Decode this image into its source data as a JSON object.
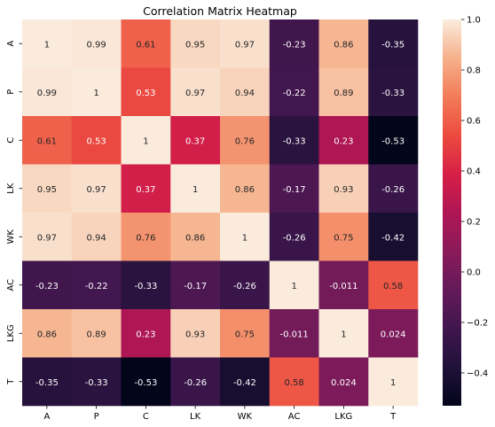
{
  "chart_data": {
    "type": "heatmap",
    "title": "Correlation Matrix Heatmap",
    "xlabel": "",
    "ylabel": "",
    "x_categories": [
      "A",
      "P",
      "C",
      "LK",
      "WK",
      "AC",
      "LKG",
      "T"
    ],
    "y_categories": [
      "A",
      "P",
      "C",
      "LK",
      "WK",
      "AC",
      "LKG",
      "T"
    ],
    "values": [
      [
        1,
        0.99,
        0.61,
        0.95,
        0.97,
        -0.23,
        0.86,
        -0.35
      ],
      [
        0.99,
        1,
        0.53,
        0.97,
        0.94,
        -0.22,
        0.89,
        -0.33
      ],
      [
        0.61,
        0.53,
        1,
        0.37,
        0.76,
        -0.33,
        0.23,
        -0.53
      ],
      [
        0.95,
        0.97,
        0.37,
        1,
        0.86,
        -0.17,
        0.93,
        -0.26
      ],
      [
        0.97,
        0.94,
        0.76,
        0.86,
        1,
        -0.26,
        0.75,
        -0.42
      ],
      [
        -0.23,
        -0.22,
        -0.33,
        -0.17,
        -0.26,
        1,
        -0.011,
        0.58
      ],
      [
        0.86,
        0.89,
        0.23,
        0.93,
        0.75,
        -0.011,
        1,
        0.024
      ],
      [
        -0.35,
        -0.33,
        -0.53,
        -0.26,
        -0.42,
        0.58,
        0.024,
        1
      ]
    ],
    "labels": [
      [
        "1",
        "0.99",
        "0.61",
        "0.95",
        "0.97",
        "-0.23",
        "0.86",
        "-0.35"
      ],
      [
        "0.99",
        "1",
        "0.53",
        "0.97",
        "0.94",
        "-0.22",
        "0.89",
        "-0.33"
      ],
      [
        "0.61",
        "0.53",
        "1",
        "0.37",
        "0.76",
        "-0.33",
        "0.23",
        "-0.53"
      ],
      [
        "0.95",
        "0.97",
        "0.37",
        "1",
        "0.86",
        "-0.17",
        "0.93",
        "-0.26"
      ],
      [
        "0.97",
        "0.94",
        "0.76",
        "0.86",
        "1",
        "-0.26",
        "0.75",
        "-0.42"
      ],
      [
        "-0.23",
        "-0.22",
        "-0.33",
        "-0.17",
        "-0.26",
        "1",
        "-0.011",
        "0.58"
      ],
      [
        "0.86",
        "0.89",
        "0.23",
        "0.93",
        "0.75",
        "-0.011",
        "1",
        "0.024"
      ],
      [
        "-0.35",
        "-0.33",
        "-0.53",
        "-0.26",
        "-0.42",
        "0.58",
        "0.024",
        "1"
      ]
    ],
    "colorbar": {
      "range": [
        -0.53,
        1.0
      ],
      "ticks": [
        -0.4,
        -0.2,
        0.0,
        0.2,
        0.4,
        0.6,
        0.8,
        1.0
      ],
      "tick_labels": [
        "−0.4",
        "−0.2",
        "0.0",
        "0.2",
        "0.4",
        "0.6",
        "0.8",
        "1.0"
      ]
    },
    "colormap": "rocket",
    "grid": false
  }
}
